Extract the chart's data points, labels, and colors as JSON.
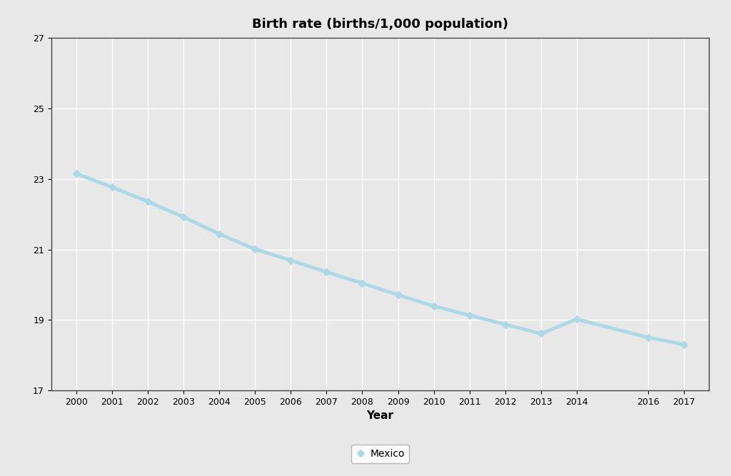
{
  "title": "Birth rate (births/1,000 population)",
  "xlabel": "Year",
  "years": [
    2000,
    2001,
    2002,
    2003,
    2004,
    2005,
    2006,
    2007,
    2008,
    2009,
    2010,
    2011,
    2012,
    2013,
    2014,
    2016,
    2017
  ],
  "values": [
    23.15,
    22.77,
    22.36,
    21.92,
    21.44,
    21.01,
    20.69,
    20.36,
    20.04,
    19.71,
    19.39,
    19.13,
    18.87,
    18.61,
    19.02,
    18.5,
    18.3
  ],
  "ylim": [
    17,
    27
  ],
  "yticks": [
    17,
    19,
    21,
    23,
    25,
    27
  ],
  "line_color": "#add8e6",
  "line_width": 3.5,
  "marker": "D",
  "marker_color": "#add8e6",
  "marker_size": 5,
  "legend_label": "Mexico",
  "bg_color": "#e8e8e8",
  "plot_bg_color": "#e8e8e8",
  "grid_color": "#ffffff",
  "title_fontsize": 13,
  "axis_label_fontsize": 11,
  "tick_fontsize": 9
}
